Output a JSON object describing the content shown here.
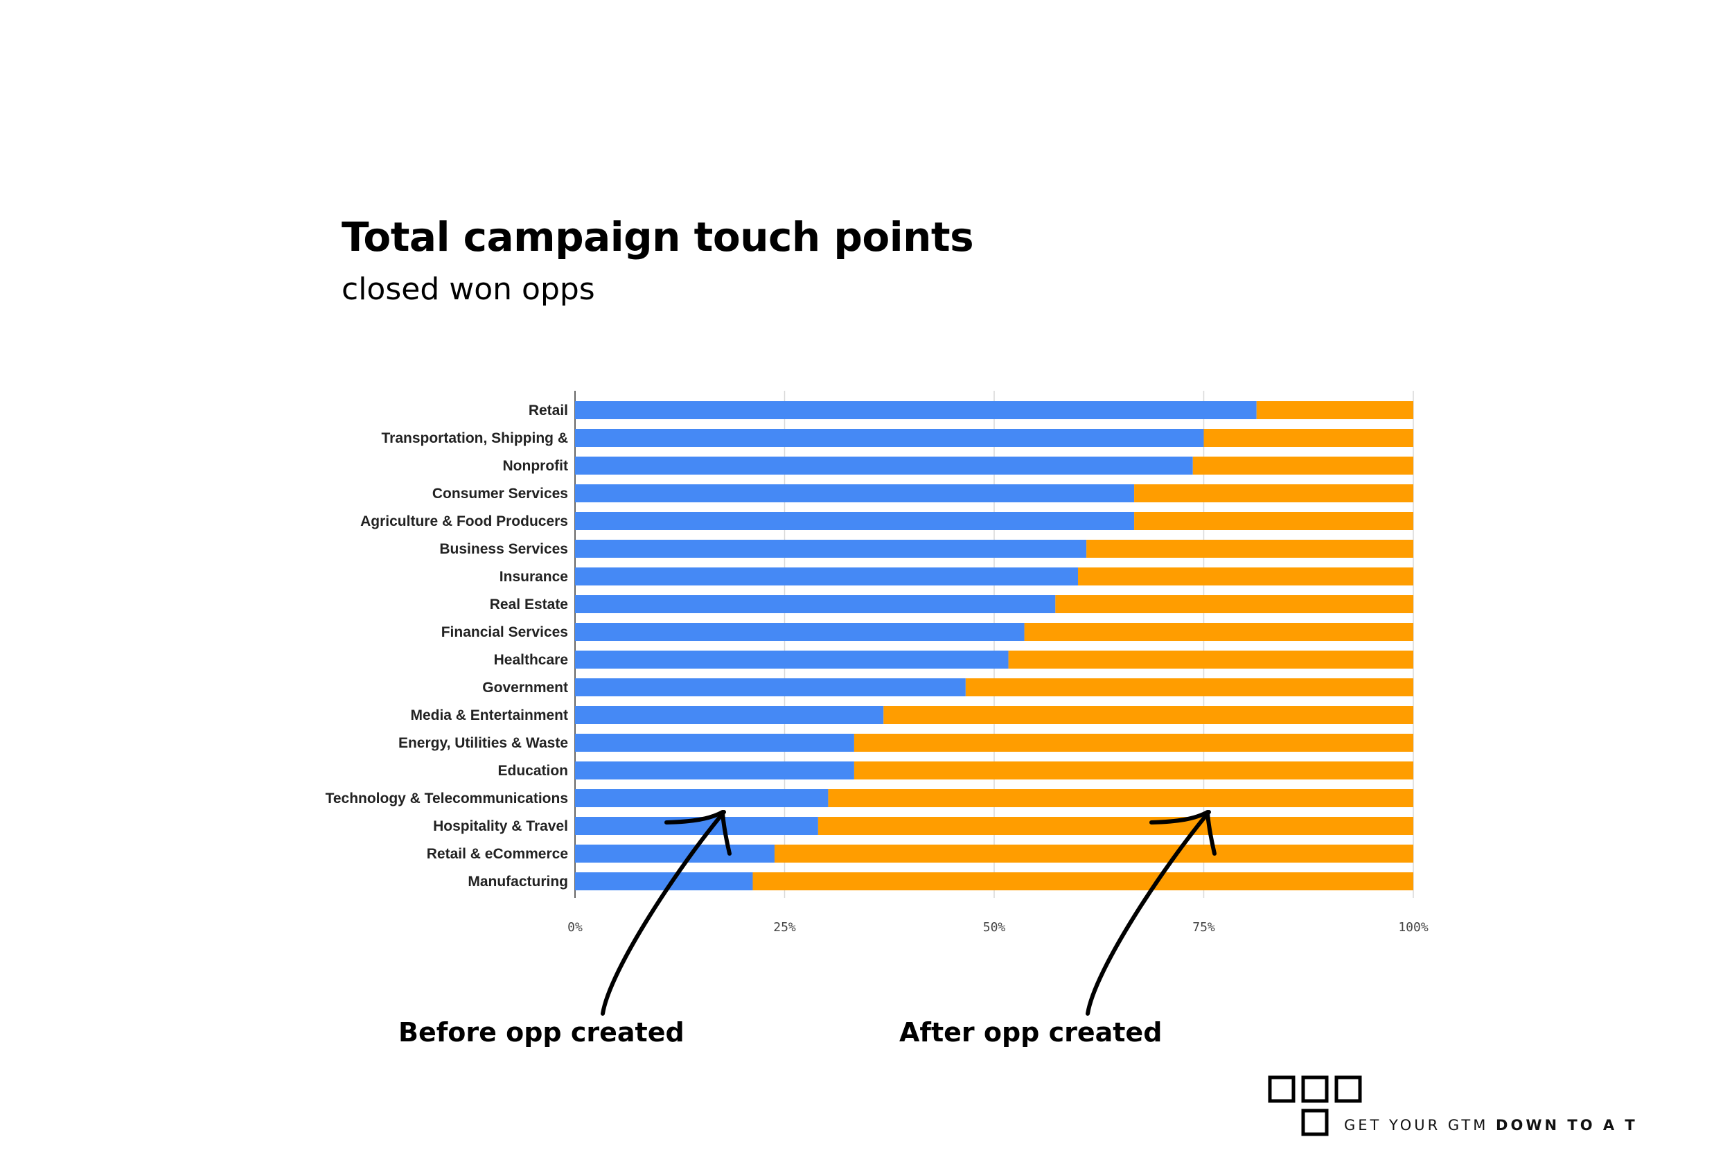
{
  "header": {
    "title": "Total campaign touch points",
    "subtitle": "closed won opps"
  },
  "annotations": {
    "before": "Before opp created",
    "after": "After opp created"
  },
  "brand": {
    "text_light": "GET YOUR GTM ",
    "text_bold": "DOWN TO A T"
  },
  "colors": {
    "before": "#4589f5",
    "after": "#ff9d00",
    "grid": "#d9d9d9",
    "axis": "#666666"
  },
  "chart_data": {
    "type": "bar",
    "orientation": "horizontal",
    "stacked": true,
    "normalized": true,
    "categories": [
      "Retail",
      "Transportation, Shipping &",
      "Nonprofit",
      "Consumer Services",
      "Agriculture & Food Producers",
      "Business Services",
      "Insurance",
      "Real Estate",
      "Financial Services",
      "Healthcare",
      "Government",
      "Media & Entertainment",
      "Energy, Utilities & Waste",
      "Education",
      "Technology & Telecommunications",
      "Hospitality & Travel",
      "Retail & eCommerce",
      "Manufacturing"
    ],
    "series": [
      {
        "name": "Before opp created",
        "values": [
          81.3,
          75.0,
          73.7,
          66.7,
          66.7,
          61.0,
          60.0,
          57.3,
          53.6,
          51.7,
          46.6,
          36.8,
          33.3,
          33.3,
          30.2,
          29.0,
          23.8,
          21.2
        ]
      },
      {
        "name": "After opp created",
        "values": [
          18.7,
          25.0,
          26.3,
          33.3,
          33.3,
          39.0,
          40.0,
          42.7,
          46.4,
          48.3,
          53.4,
          63.2,
          66.7,
          66.7,
          69.8,
          71.0,
          76.2,
          78.8
        ]
      }
    ],
    "x_ticks": [
      "0%",
      "25%",
      "50%",
      "75%",
      "100%"
    ],
    "xlim": [
      0,
      100
    ],
    "grid": true,
    "legend": "none (annotated with arrows below the chart)"
  }
}
